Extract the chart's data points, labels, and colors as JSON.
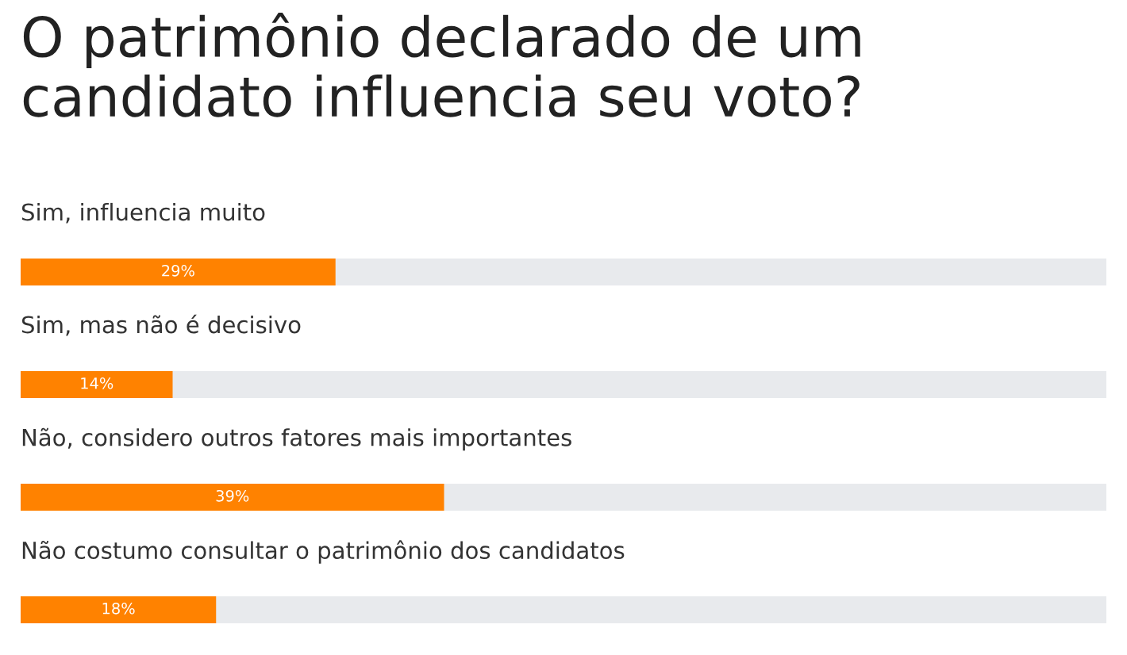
{
  "chart_data": {
    "type": "bar",
    "orientation": "horizontal",
    "title": "O patrimônio declarado de um candidato influencia seu voto?",
    "categories": [
      "Sim, influencia muito",
      "Sim, mas não é decisivo",
      "Não, considero outros fatores mais importantes",
      "Não costumo consultar o patrimônio dos candidatos"
    ],
    "values": [
      29,
      14,
      39,
      18
    ],
    "value_labels": [
      "29%",
      "14%",
      "39%",
      "18%"
    ],
    "color": "#ff8200",
    "xlim": [
      0,
      100
    ],
    "tick_labels": false
  }
}
